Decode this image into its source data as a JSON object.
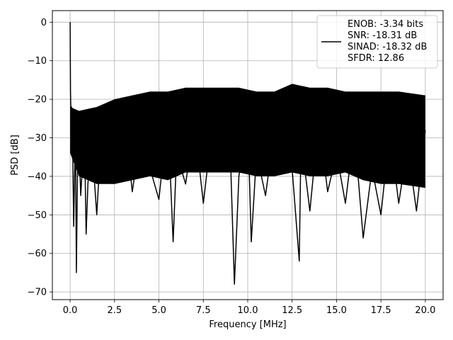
{
  "chart_data": {
    "type": "line",
    "title": "",
    "xlabel": "Frequency [MHz]",
    "ylabel": "PSD [dB]",
    "xlim": [
      -1.0,
      21.0
    ],
    "ylim": [
      -72,
      3
    ],
    "xticks": [
      0.0,
      2.5,
      5.0,
      7.5,
      10.0,
      12.5,
      15.0,
      17.5,
      20.0
    ],
    "xtick_labels": [
      "0.0",
      "2.5",
      "5.0",
      "7.5",
      "10.0",
      "12.5",
      "15.0",
      "17.5",
      "20.0"
    ],
    "yticks": [
      0,
      -10,
      -20,
      -30,
      -40,
      -50,
      -60,
      -70
    ],
    "ytick_labels": [
      "0",
      "−10",
      "−20",
      "−30",
      "−40",
      "−50",
      "−60",
      "−70"
    ],
    "grid": true,
    "legend_position": "top-right",
    "legend_lines": [
      "ENOB: -3.34 bits",
      "SNR: -18.31 dB",
      "SINAD: -18.32 dB",
      "SFDR: 12.86"
    ],
    "series_color": "#000000",
    "series": [
      {
        "name": "",
        "x": [
          0.0,
          0.02,
          0.05,
          0.08,
          0.12,
          0.2,
          0.3,
          0.35,
          0.45,
          0.6,
          0.8,
          0.9,
          1.0,
          1.2,
          1.5,
          1.8,
          2.0,
          2.5,
          3.0,
          3.5,
          4.0,
          4.5,
          5.0,
          5.5,
          5.8,
          6.0,
          6.5,
          7.0,
          7.5,
          8.0,
          8.5,
          9.0,
          9.25,
          9.5,
          10.0,
          10.2,
          10.5,
          11.0,
          11.5,
          12.0,
          12.2,
          12.5,
          12.9,
          13.0,
          13.5,
          14.0,
          14.5,
          15.0,
          15.5,
          16.0,
          16.5,
          17.0,
          17.5,
          18.0,
          18.5,
          19.0,
          19.5,
          20.0
        ],
        "y": [
          0,
          -18,
          -24,
          -22,
          -24,
          -53,
          -27,
          -65,
          -25,
          -45,
          -28,
          -55,
          -42,
          -30,
          -50,
          -25,
          -34,
          -40,
          -22,
          -44,
          -28,
          -38,
          -46,
          -24,
          -57,
          -34,
          -42,
          -26,
          -47,
          -27,
          -36,
          -31,
          -68,
          -40,
          -25,
          -57,
          -34,
          -45,
          -28,
          -39,
          -20,
          -38,
          -62,
          -30,
          -49,
          -25,
          -44,
          -34,
          -47,
          -28,
          -56,
          -38,
          -50,
          -28,
          -47,
          -32,
          -49,
          -28
        ]
      }
    ],
    "envelope": {
      "x": [
        0.0,
        0.5,
        1.5,
        2.5,
        3.5,
        4.5,
        5.5,
        6.5,
        7.5,
        8.5,
        9.5,
        10.5,
        11.5,
        12.5,
        13.5,
        14.5,
        15.5,
        16.5,
        17.5,
        18.5,
        20.0
      ],
      "upper": [
        -22,
        -23,
        -22,
        -20,
        -19,
        -18,
        -18,
        -17,
        -17,
        -17,
        -17,
        -18,
        -18,
        -16,
        -17,
        -17,
        -18,
        -18,
        -18,
        -18,
        -19
      ],
      "lower": [
        -34,
        -40,
        -42,
        -42,
        -41,
        -40,
        -41,
        -39,
        -39,
        -39,
        -39,
        -40,
        -40,
        -39,
        -40,
        -40,
        -39,
        -41,
        -42,
        -42,
        -43
      ]
    }
  }
}
